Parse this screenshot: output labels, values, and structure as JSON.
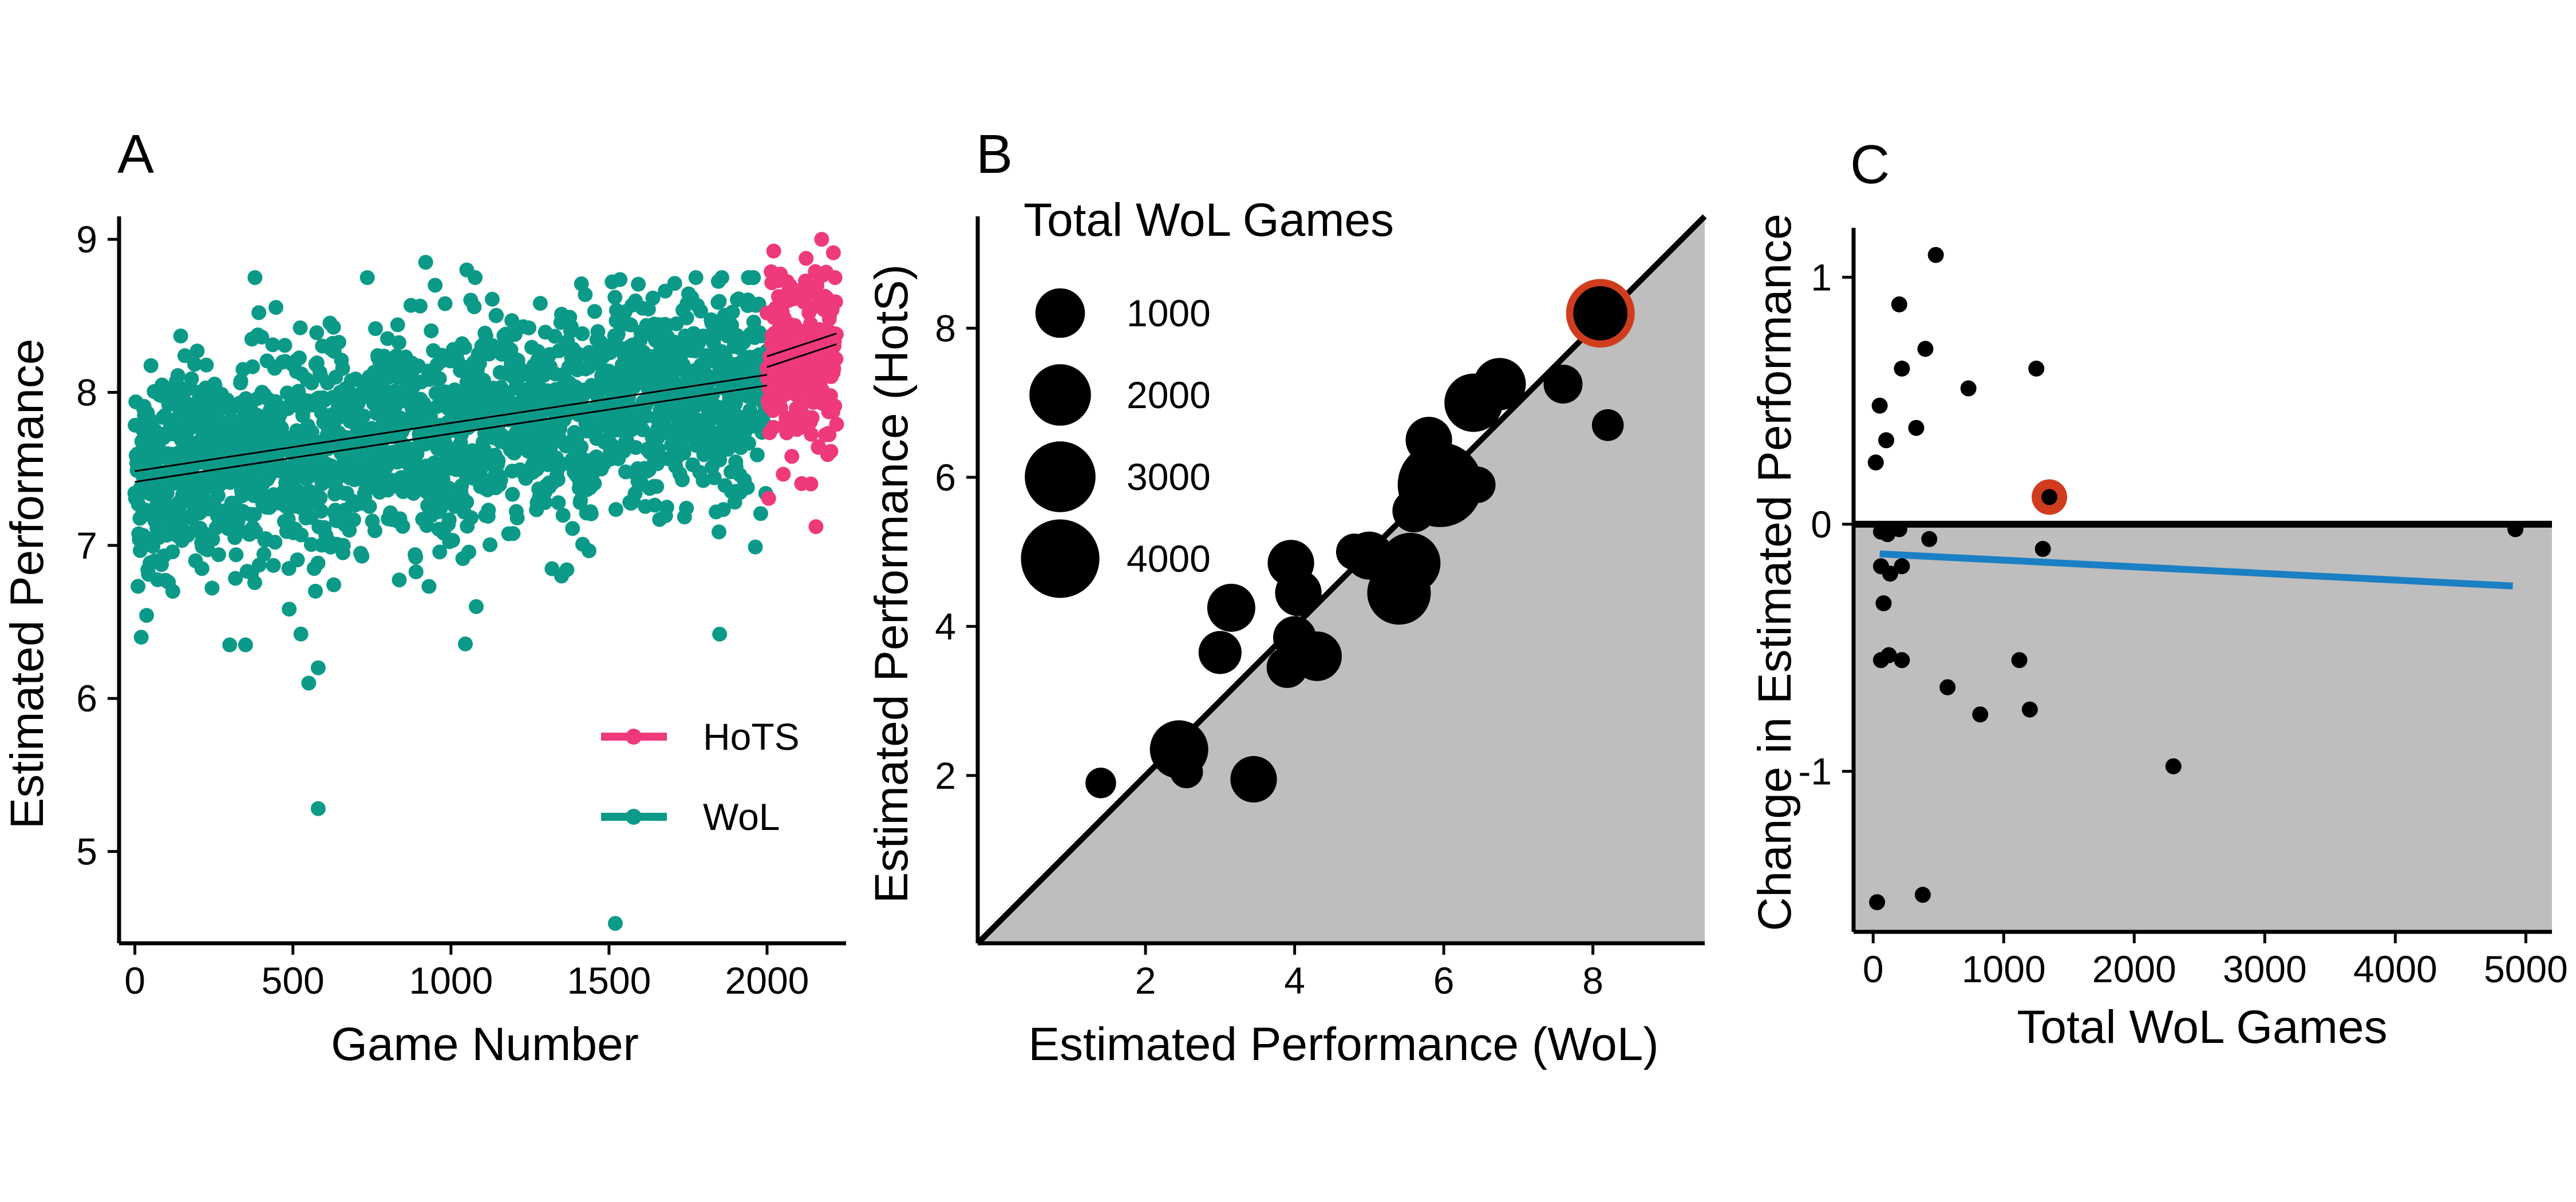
{
  "chart_data": [
    {
      "panel": "A",
      "type": "scatter",
      "xlabel": "Game Number",
      "ylabel": "Estimated Performance",
      "xlim": [
        -50,
        2250
      ],
      "ylim": [
        4.4,
        9.15
      ],
      "xticks": [
        0,
        500,
        1000,
        1500,
        2000
      ],
      "yticks": [
        5,
        6,
        7,
        8,
        9
      ],
      "legend": {
        "position": "bottom-right"
      },
      "series": [
        {
          "name": "HoTS",
          "color": "#ee3a7b",
          "x_range": [
            2000,
            2220
          ],
          "y_mean": 8.25,
          "y_sd": 0.3,
          "n": 220,
          "trend": [
            [
              2000,
              8.2
            ],
            [
              2220,
              8.35
            ]
          ]
        },
        {
          "name": "WoL",
          "color": "#0c9a88",
          "x_range": [
            0,
            2000
          ],
          "y_mean_start": 7.45,
          "y_mean_end": 8.05,
          "y_sd": 0.35,
          "n": 2000,
          "trend": [
            [
              0,
              7.45
            ],
            [
              2000,
              8.08
            ]
          ],
          "outliers": [
            [
              20,
              6.4
            ],
            [
              120,
              6.7
            ],
            [
              300,
              6.35
            ],
            [
              380,
              8.75
            ],
            [
              550,
              6.1
            ],
            [
              580,
              6.2
            ],
            [
              580,
              5.28
            ],
            [
              920,
              8.85
            ],
            [
              1080,
              6.6
            ],
            [
              1520,
              4.53
            ],
            [
              1350,
              6.8
            ],
            [
              1850,
              6.42
            ],
            [
              950,
              8.7
            ],
            [
              1050,
              8.8
            ]
          ]
        }
      ]
    },
    {
      "panel": "B",
      "type": "scatter",
      "xlabel": "Estimated Performance (WoL)",
      "ylabel": "Estimated Performance (HotS)",
      "xlim": [
        -0.25,
        9.5
      ],
      "ylim": [
        -0.25,
        9.5
      ],
      "xticks": [
        2,
        4,
        6,
        8
      ],
      "yticks": [
        2,
        4,
        6,
        8
      ],
      "reference_line": "y = x",
      "legend": {
        "title": "Total WoL Games",
        "position": "top-left",
        "sizes": [
          1000,
          2000,
          3000,
          4000
        ]
      },
      "points": [
        {
          "x": 1.4,
          "y": 1.9,
          "games": 120
        },
        {
          "x": 2.45,
          "y": 2.35,
          "games": 1700
        },
        {
          "x": 2.55,
          "y": 2.05,
          "games": 180
        },
        {
          "x": 3.0,
          "y": 3.65,
          "games": 600
        },
        {
          "x": 3.15,
          "y": 4.25,
          "games": 900
        },
        {
          "x": 3.45,
          "y": 1.95,
          "games": 800
        },
        {
          "x": 3.9,
          "y": 3.45,
          "games": 500
        },
        {
          "x": 3.95,
          "y": 4.85,
          "games": 800
        },
        {
          "x": 4.0,
          "y": 3.85,
          "games": 600
        },
        {
          "x": 4.05,
          "y": 4.45,
          "games": 800
        },
        {
          "x": 4.3,
          "y": 3.6,
          "games": 1000
        },
        {
          "x": 4.8,
          "y": 5.0,
          "games": 300
        },
        {
          "x": 5.0,
          "y": 4.95,
          "games": 900
        },
        {
          "x": 5.4,
          "y": 4.45,
          "games": 2200
        },
        {
          "x": 5.55,
          "y": 4.85,
          "games": 1900
        },
        {
          "x": 5.6,
          "y": 5.55,
          "games": 600
        },
        {
          "x": 5.8,
          "y": 6.5,
          "games": 800
        },
        {
          "x": 5.95,
          "y": 5.9,
          "games": 4900
        },
        {
          "x": 6.45,
          "y": 5.9,
          "games": 300
        },
        {
          "x": 6.4,
          "y": 7.0,
          "games": 1700
        },
        {
          "x": 6.75,
          "y": 7.25,
          "games": 1200
        },
        {
          "x": 7.6,
          "y": 7.25,
          "games": 400
        },
        {
          "x": 8.1,
          "y": 8.2,
          "games": 1350,
          "highlight": true
        },
        {
          "x": 8.2,
          "y": 6.7,
          "games": 150
        }
      ],
      "highlight_color": "#d03d1e"
    },
    {
      "panel": "C",
      "type": "scatter",
      "xlabel": "Total WoL Games",
      "ylabel": "Change in Estimated Performance",
      "xlim": [
        -150,
        5200
      ],
      "ylim": [
        -1.65,
        1.2
      ],
      "xticks": [
        0,
        1000,
        2000,
        3000,
        4000,
        5000
      ],
      "yticks": [
        -1,
        0,
        1
      ],
      "reference_line": "y = 0",
      "trend_color": "#1b7fc4",
      "trend": [
        [
          50,
          -0.12
        ],
        [
          4900,
          -0.25
        ]
      ],
      "points": [
        {
          "x": 20,
          "y": 0.25
        },
        {
          "x": 50,
          "y": 0.48
        },
        {
          "x": 100,
          "y": 0.34
        },
        {
          "x": 200,
          "y": 0.89
        },
        {
          "x": 220,
          "y": 0.63
        },
        {
          "x": 330,
          "y": 0.39
        },
        {
          "x": 400,
          "y": 0.71
        },
        {
          "x": 480,
          "y": 1.09
        },
        {
          "x": 730,
          "y": 0.55
        },
        {
          "x": 1250,
          "y": 0.63
        },
        {
          "x": 1350,
          "y": 0.11,
          "highlight": true
        },
        {
          "x": 1300,
          "y": -0.1
        },
        {
          "x": 60,
          "y": -0.03
        },
        {
          "x": 110,
          "y": -0.04
        },
        {
          "x": 200,
          "y": -0.02
        },
        {
          "x": 60,
          "y": -0.17
        },
        {
          "x": 130,
          "y": -0.2
        },
        {
          "x": 220,
          "y": -0.17
        },
        {
          "x": 430,
          "y": -0.06
        },
        {
          "x": 80,
          "y": -0.32
        },
        {
          "x": 60,
          "y": -0.55
        },
        {
          "x": 120,
          "y": -0.53
        },
        {
          "x": 220,
          "y": -0.55
        },
        {
          "x": 570,
          "y": -0.66
        },
        {
          "x": 820,
          "y": -0.77
        },
        {
          "x": 1120,
          "y": -0.55
        },
        {
          "x": 1200,
          "y": -0.75
        },
        {
          "x": 2300,
          "y": -0.98
        },
        {
          "x": 30,
          "y": -1.53
        },
        {
          "x": 380,
          "y": -1.5
        },
        {
          "x": 4920,
          "y": -0.02
        }
      ],
      "highlight_color": "#d03d1e"
    }
  ]
}
